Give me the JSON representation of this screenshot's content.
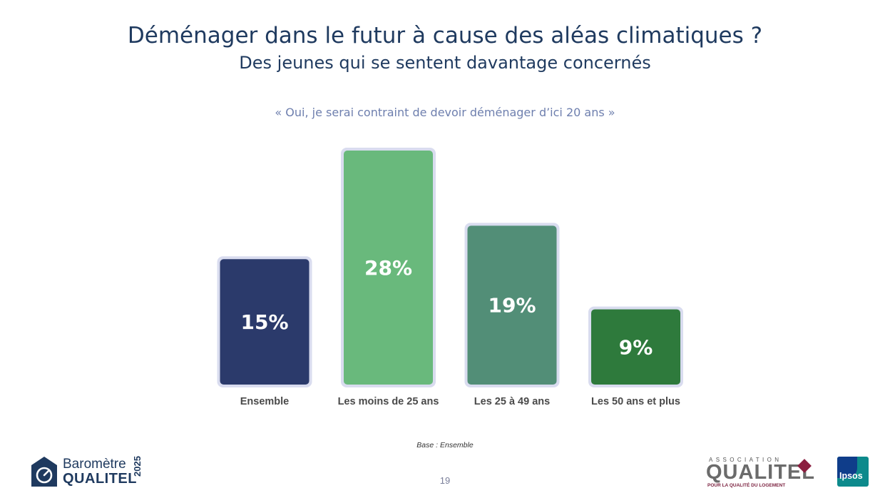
{
  "header": {
    "title": "Déménager dans le futur à cause des aléas climatiques ?",
    "subtitle": "Des jeunes qui se sentent davantage concernés"
  },
  "chart_data": {
    "type": "bar",
    "title": "« Oui, je serai contraint de devoir déménager d’ici 20 ans »",
    "categories": [
      "Ensemble",
      "Les moins de 25 ans",
      "Les 25 à 49 ans",
      "Les 50 ans et plus"
    ],
    "values": [
      15,
      28,
      19,
      9
    ],
    "value_labels": [
      "15%",
      "28%",
      "19%",
      "9%"
    ],
    "colors": [
      "#2b3a6b",
      "#69b97c",
      "#528e77",
      "#2e7a3c"
    ],
    "ylim": [
      0,
      28
    ],
    "unit": "%",
    "xlabel": "",
    "ylabel": ""
  },
  "footer": {
    "base_note": "Base : Ensemble",
    "page_number": "19"
  },
  "logos": {
    "barometre_line1": "Baromètre",
    "barometre_line2": "QUALITEL",
    "barometre_year": "2025",
    "qualitel_association": "ASSOCIATION",
    "qualitel_name": "QUALITEL",
    "qualitel_tagline": "POUR LA QUALITÉ DU LOGEMENT",
    "ipsos": "Ipsos"
  }
}
